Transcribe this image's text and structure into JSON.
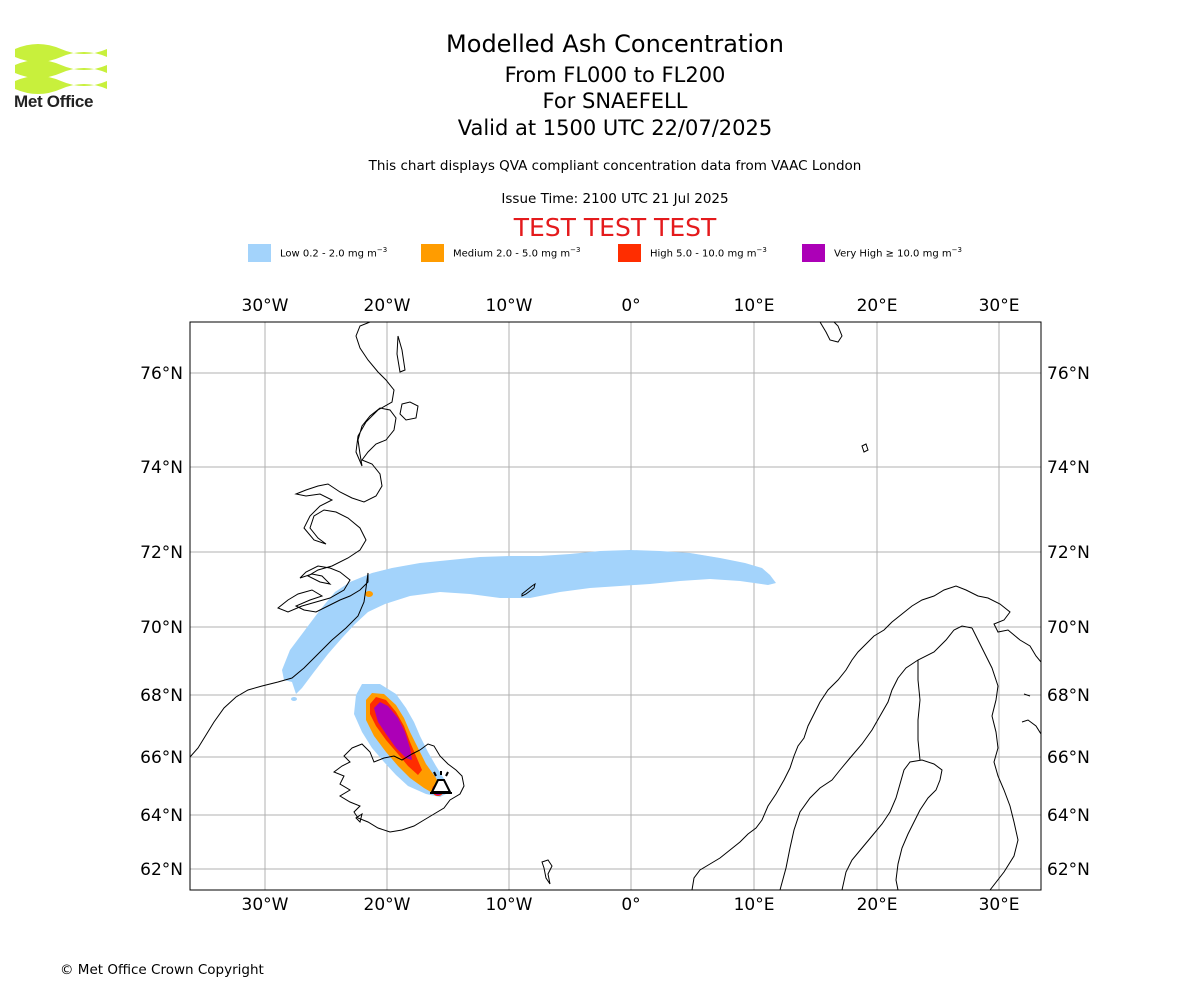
{
  "header": {
    "logo_text": "Met Office",
    "title": "Modelled Ash Concentration",
    "levels": "From FL000 to FL200",
    "volcano": "For SNAEFELL",
    "valid": "Valid at 1500 UTC 22/07/2025",
    "note": "This chart displays QVA compliant concentration data from VAAC London",
    "issue": "Issue Time: 2100 UTC 21 Jul 2025",
    "test_banner": "TEST TEST TEST"
  },
  "legend": [
    {
      "label": "Low 0.2 - 2.0 mg m",
      "sup": "−3",
      "color": "#a3d3fb"
    },
    {
      "label": "Medium 2.0 - 5.0 mg m",
      "sup": "−3",
      "color": "#ff9c00"
    },
    {
      "label": "High 5.0 - 10.0 mg m",
      "sup": "−3",
      "color": "#ff2d00"
    },
    {
      "label": "Very High  ≥  10.0 mg m",
      "sup": "−3",
      "color": "#ac00b7"
    }
  ],
  "map": {
    "lon_labels": [
      "30°W",
      "20°W",
      "10°W",
      "0°",
      "10°E",
      "20°E",
      "30°E"
    ],
    "lat_labels": [
      "76°N",
      "74°N",
      "72°N",
      "70°N",
      "68°N",
      "66°N",
      "64°N",
      "62°N"
    ],
    "volcano_icon": "volcano-marker-icon"
  },
  "footer": {
    "copyright": "© Met Office Crown Copyright"
  }
}
